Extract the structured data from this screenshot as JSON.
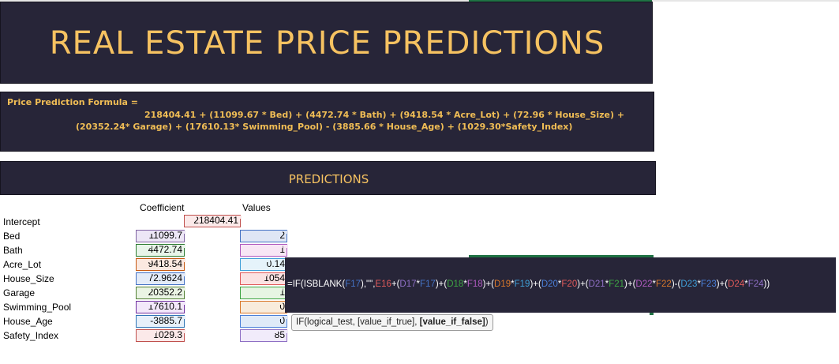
{
  "title": "REAL ESTATE PRICE PREDICTIONS",
  "formula": {
    "label": "Price Prediction Formula =",
    "line1": "218404.41 + (11099.67 * Bed) + (4472.74 * Bath) + (9418.54 * Acre_Lot) + (72.96 * House_Size) +",
    "line2": "(20352.24* Garage) + (17610.13* Swimming_Pool) - (3885.66 * House_Age) + (1029.30*Safety_Index)"
  },
  "predictions_header": "PREDICTIONS",
  "table": {
    "coef_header": "Coefficient",
    "values_header": "Values",
    "intercept_label": "Intercept",
    "intercept_value": "218404.41",
    "rows": [
      {
        "label": "Bed",
        "coef": "11099.7",
        "value": "2"
      },
      {
        "label": "Bath",
        "coef": "4472.74",
        "value": "1"
      },
      {
        "label": "Acre_Lot",
        "coef": "9418.54",
        "value": "0.14"
      },
      {
        "label": "House_Size",
        "coef": "72.9624",
        "value": "1054"
      },
      {
        "label": "Garage",
        "coef": "20352.2",
        "value": "1"
      },
      {
        "label": "Swimming_Pool",
        "coef": "17610.1",
        "value": "0"
      },
      {
        "label": "House_Age",
        "coef": "-3885.7",
        "value": "0"
      },
      {
        "label": "Safety_Index",
        "coef": "1029.3",
        "value": "85"
      }
    ]
  },
  "colors": {
    "intercept": "#c0504d",
    "bed": "#8064a2",
    "bath": "#2e7d32",
    "acre": "#c65911",
    "house": "#4472c4",
    "garage": "#538135",
    "pool": "#7030a0",
    "age": "#2f75b5",
    "safety": "#c0504d"
  },
  "formula_bar": {
    "segments": [
      {
        "t": "=IF(ISBLANK(",
        "c": "#ffffff"
      },
      {
        "t": "F17",
        "c": "#4472c4"
      },
      {
        "t": "),\"\",",
        "c": "#ffffff"
      },
      {
        "t": "E16",
        "c": "#e05a5a"
      },
      {
        "t": "+(",
        "c": "#ffffff"
      },
      {
        "t": "D17",
        "c": "#8e6fc4"
      },
      {
        "t": "*",
        "c": "#ffffff"
      },
      {
        "t": "F17",
        "c": "#4472c4"
      },
      {
        "t": ")+(",
        "c": "#ffffff"
      },
      {
        "t": "D18",
        "c": "#3ea543"
      },
      {
        "t": "*",
        "c": "#ffffff"
      },
      {
        "t": "F18",
        "c": "#b05ac0"
      },
      {
        "t": ")+(",
        "c": "#ffffff"
      },
      {
        "t": "D19",
        "c": "#d9782a"
      },
      {
        "t": "*",
        "c": "#ffffff"
      },
      {
        "t": "F19",
        "c": "#3fa0d8"
      },
      {
        "t": ")+(",
        "c": "#ffffff"
      },
      {
        "t": "D20",
        "c": "#4a7fd8"
      },
      {
        "t": "*",
        "c": "#ffffff"
      },
      {
        "t": "F20",
        "c": "#e05a5a"
      },
      {
        "t": ")+(",
        "c": "#ffffff"
      },
      {
        "t": "D21",
        "c": "#8e6fc4"
      },
      {
        "t": "*",
        "c": "#ffffff"
      },
      {
        "t": "F21",
        "c": "#3ea543"
      },
      {
        "t": ")+(",
        "c": "#ffffff"
      },
      {
        "t": "D22",
        "c": "#b05ac0"
      },
      {
        "t": "*",
        "c": "#ffffff"
      },
      {
        "t": "F22",
        "c": "#d9782a"
      },
      {
        "t": ")-(",
        "c": "#ffffff"
      },
      {
        "t": "D23",
        "c": "#3fa0d8"
      },
      {
        "t": "*",
        "c": "#ffffff"
      },
      {
        "t": "F23",
        "c": "#4a7fd8"
      },
      {
        "t": ")+(",
        "c": "#ffffff"
      },
      {
        "t": "D24",
        "c": "#e05a5a"
      },
      {
        "t": "*",
        "c": "#ffffff"
      },
      {
        "t": "F24",
        "c": "#8e6fc4"
      },
      {
        "t": "))",
        "c": "#ffffff"
      }
    ]
  },
  "tooltip": {
    "prefix": "IF(logical_test, [value_if_true], ",
    "bold": "[value_if_false]",
    "suffix": ")"
  }
}
